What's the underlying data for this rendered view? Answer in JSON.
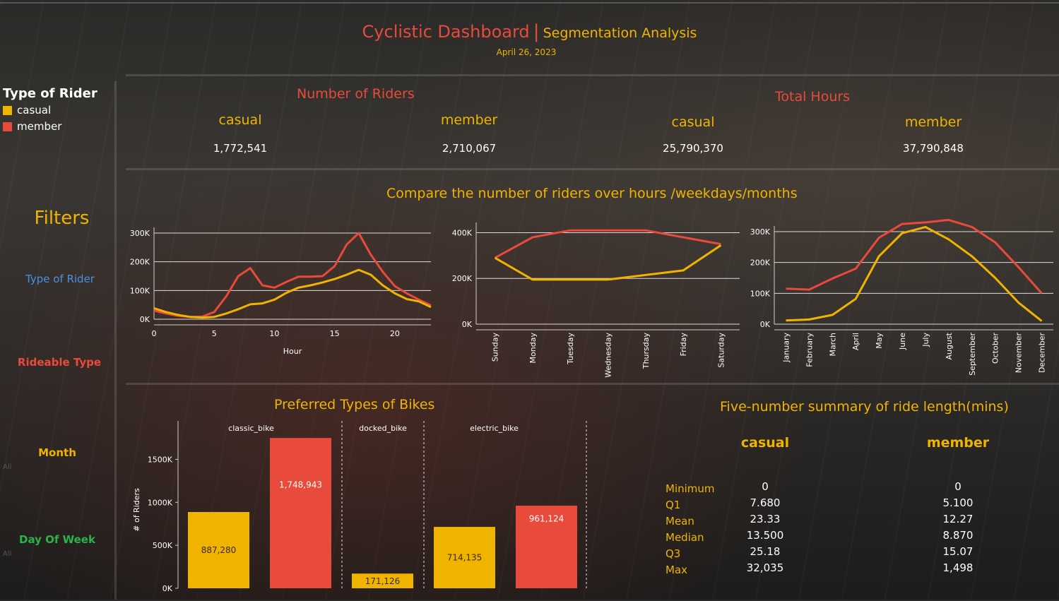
{
  "header": {
    "title": "Cyclistic Dashboard",
    "divider": "|",
    "subtitle": "Segmentation Analysis",
    "date": "April 26, 2023"
  },
  "legend": {
    "title": "Type of Rider",
    "items": [
      {
        "label": "casual",
        "color": "#f0b400"
      },
      {
        "label": "member",
        "color": "#e84a3c"
      }
    ]
  },
  "kpis": {
    "riders_title": "Number of Riders",
    "hours_title": "Total Hours",
    "riders_casual_label": "casual",
    "riders_casual_value": "1,772,541",
    "riders_member_label": "member",
    "riders_member_value": "2,710,067",
    "hours_casual_label": "casual",
    "hours_casual_value": "25,790,370",
    "hours_member_label": "member",
    "hours_member_value": "37,790,848"
  },
  "filters": {
    "title": "Filters",
    "items": [
      {
        "label": "Type of Rider",
        "color": "#4a90e2"
      },
      {
        "label": "Rideable Type",
        "color": "#e84a3c"
      },
      {
        "label": "Month",
        "color": "#f0b400"
      },
      {
        "label": "Day Of Week",
        "color": "#2bb34a"
      }
    ],
    "all_label": "All"
  },
  "compare_title": "Compare the number of riders over hours /weekdays/months",
  "colors": {
    "casual": "#f0b400",
    "member": "#e84a3c"
  },
  "chart_data": [
    {
      "type": "line",
      "xlabel": "Hour",
      "ylabel": "",
      "x": [
        0,
        1,
        2,
        3,
        4,
        5,
        6,
        7,
        8,
        9,
        10,
        11,
        12,
        13,
        14,
        15,
        16,
        17,
        18,
        19,
        20,
        21,
        22,
        23
      ],
      "xticks": [
        0,
        5,
        10,
        15,
        20
      ],
      "yticks": [
        "0K",
        "100K",
        "200K",
        "300K"
      ],
      "ylim": [
        0,
        300000
      ],
      "series": [
        {
          "name": "member",
          "values": [
            30000,
            20000,
            12000,
            8000,
            9000,
            25000,
            80000,
            150000,
            178000,
            118000,
            110000,
            130000,
            148000,
            148000,
            150000,
            185000,
            260000,
            300000,
            225000,
            165000,
            115000,
            90000,
            68000,
            48000
          ]
        },
        {
          "name": "casual",
          "values": [
            38000,
            25000,
            15000,
            8000,
            6000,
            8000,
            20000,
            35000,
            52000,
            55000,
            68000,
            92000,
            110000,
            118000,
            128000,
            140000,
            155000,
            172000,
            155000,
            118000,
            90000,
            70000,
            62000,
            42000
          ]
        }
      ]
    },
    {
      "type": "line",
      "categories": [
        "Sunday",
        "Monday",
        "Tuesday",
        "Wednesday",
        "Thursday",
        "Friday",
        "Saturday"
      ],
      "yticks": [
        "0K",
        "200K",
        "400K"
      ],
      "ylim": [
        0,
        420000
      ],
      "series": [
        {
          "name": "member",
          "values": [
            290000,
            380000,
            410000,
            410000,
            410000,
            380000,
            350000
          ]
        },
        {
          "name": "casual",
          "values": [
            290000,
            195000,
            195000,
            195000,
            215000,
            235000,
            345000
          ]
        }
      ]
    },
    {
      "type": "line",
      "categories": [
        "January",
        "February",
        "March",
        "April",
        "May",
        "June",
        "July",
        "August",
        "September",
        "October",
        "November",
        "December"
      ],
      "yticks": [
        "0K",
        "100K",
        "200K",
        "300K"
      ],
      "ylim": [
        0,
        300000
      ],
      "series": [
        {
          "name": "member",
          "values": [
            115000,
            112000,
            148000,
            180000,
            280000,
            325000,
            330000,
            338000,
            315000,
            265000,
            185000,
            100000
          ]
        },
        {
          "name": "casual",
          "values": [
            12000,
            15000,
            30000,
            82000,
            220000,
            295000,
            315000,
            275000,
            220000,
            150000,
            70000,
            10000
          ]
        }
      ]
    },
    {
      "type": "bar",
      "title": "Preferred Types of Bikes",
      "ylabel": "# of Riders",
      "yticks": [
        "0K",
        "500K",
        "1000K",
        "1500K"
      ],
      "ylim": [
        0,
        1750000
      ],
      "categories": [
        "classic_bike",
        "docked_bike",
        "electric_bike"
      ],
      "series": [
        {
          "name": "casual",
          "values": [
            887280,
            171126,
            714135
          ],
          "labels": [
            "887,280",
            "171,126",
            "714,135"
          ]
        },
        {
          "name": "member",
          "values": [
            1748943,
            null,
            961124
          ],
          "labels": [
            "1,748,943",
            "",
            "961,124"
          ]
        }
      ]
    }
  ],
  "summary": {
    "title": "Five-number summary of ride length(mins)",
    "casual_label": "casual",
    "member_label": "member",
    "rows": [
      {
        "label": "Minimum",
        "casual": "0",
        "member": "0"
      },
      {
        "label": "Q1",
        "casual": "7.680",
        "member": "5.100"
      },
      {
        "label": "Mean",
        "casual": "23.33",
        "member": "12.27"
      },
      {
        "label": "Median",
        "casual": "13.500",
        "member": "8.870"
      },
      {
        "label": "Q3",
        "casual": "25.18",
        "member": "15.07"
      },
      {
        "label": "Max",
        "casual": "32,035",
        "member": "1,498"
      }
    ]
  }
}
